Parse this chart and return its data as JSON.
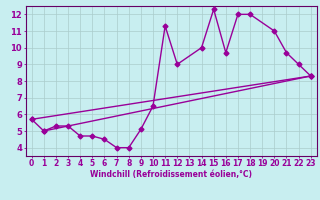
{
  "title": "",
  "xlabel": "Windchill (Refroidissement éolien,°C)",
  "bg_color": "#c8eef0",
  "line_color": "#990099",
  "grid_color": "#aacccc",
  "spine_color": "#660066",
  "xlim": [
    -0.5,
    23.5
  ],
  "ylim": [
    3.5,
    12.5
  ],
  "xticks": [
    0,
    1,
    2,
    3,
    4,
    5,
    6,
    7,
    8,
    9,
    10,
    11,
    12,
    13,
    14,
    15,
    16,
    17,
    18,
    19,
    20,
    21,
    22,
    23
  ],
  "yticks": [
    4,
    5,
    6,
    7,
    8,
    9,
    10,
    11,
    12
  ],
  "line1_x": [
    0,
    1,
    2,
    3,
    4,
    5,
    6,
    7,
    8,
    9,
    10,
    11,
    12,
    14,
    15,
    16,
    17,
    18,
    20,
    21,
    22,
    23
  ],
  "line1_y": [
    5.7,
    5.0,
    5.3,
    5.3,
    4.7,
    4.7,
    4.5,
    4.0,
    4.0,
    5.1,
    6.5,
    11.3,
    9.0,
    10.0,
    12.3,
    9.7,
    12.0,
    12.0,
    11.0,
    9.7,
    9.0,
    8.3
  ],
  "line2_x": [
    0,
    23
  ],
  "line2_y": [
    5.7,
    8.3
  ],
  "line3_x": [
    1,
    23
  ],
  "line3_y": [
    5.0,
    8.3
  ],
  "marker": "D",
  "markersize": 2.5,
  "linewidth": 1.0,
  "tick_fontsize": 5.5,
  "xlabel_fontsize": 5.5
}
